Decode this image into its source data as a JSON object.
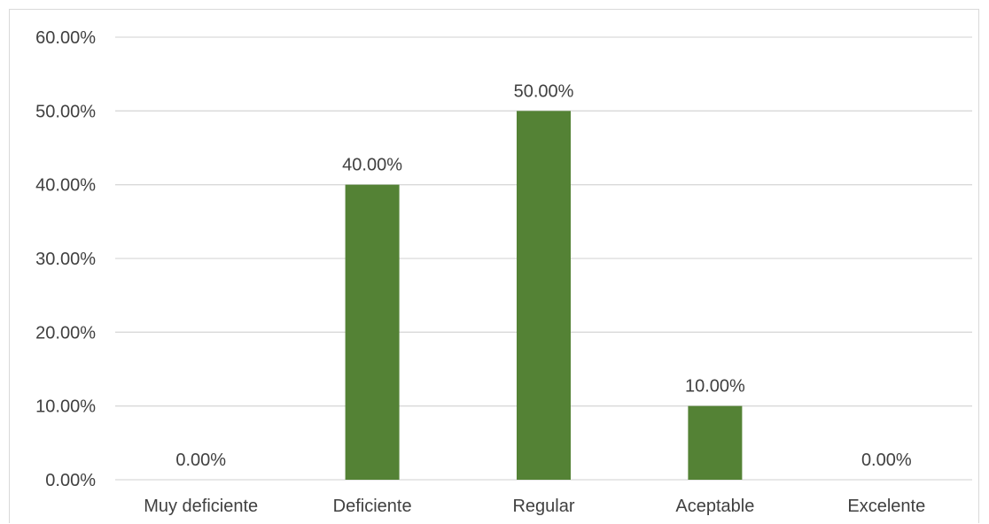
{
  "chart_data": {
    "type": "bar",
    "categories": [
      "Muy deficiente",
      "Deficiente",
      "Regular",
      "Aceptable",
      "Excelente"
    ],
    "values": [
      0.0,
      40.0,
      50.0,
      10.0,
      0.0
    ],
    "data_labels": [
      "0.00%",
      "40.00%",
      "50.00%",
      "10.00%",
      "0.00%"
    ],
    "y_ticks": [
      0,
      10,
      20,
      30,
      40,
      50,
      60
    ],
    "y_tick_labels": [
      "0.00%",
      "10.00%",
      "20.00%",
      "30.00%",
      "40.00%",
      "50.00%",
      "60.00%"
    ],
    "ylim": [
      0,
      60
    ],
    "unit": "%",
    "grid": true,
    "legend": "none",
    "bar_color": "#548235",
    "grid_color": "#d9d9d9",
    "text_color": "#404040"
  }
}
